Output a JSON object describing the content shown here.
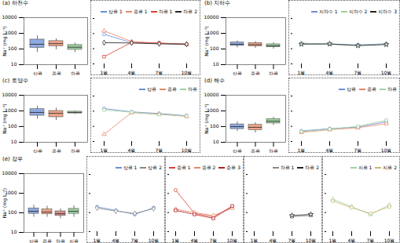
{
  "chart_data": [
    {
      "type": "box",
      "title": "(a) 하천수",
      "y_label": "Na⁺ (mg L⁻¹)",
      "log": "y",
      "ylim": [
        10,
        10000
      ],
      "yticks": [
        10,
        100,
        1000,
        10000
      ],
      "categories": [
        "상류",
        "중류",
        "하류"
      ],
      "colors": [
        "#8fa9e0",
        "#eea58a",
        "#9fd09f"
      ],
      "boxes": [
        {
          "min": 60,
          "q1": 120,
          "median": 200,
          "q3": 400,
          "max": 700
        },
        {
          "min": 90,
          "q1": 150,
          "median": 220,
          "q3": 320,
          "max": 450
        },
        {
          "min": 60,
          "q1": 90,
          "median": 130,
          "q3": 180,
          "max": 240
        }
      ]
    },
    {
      "type": "line",
      "log": "y",
      "ylim": [
        10,
        10000
      ],
      "yticks": [
        10,
        100,
        1000,
        10000
      ],
      "tick_labels": "x",
      "legend": "top",
      "categories": [
        "1월",
        "4월",
        "7월",
        "10월"
      ],
      "series": [
        {
          "name": "상류 1",
          "color": "#6b8fd6",
          "marker": "circle",
          "values": [
            900,
            250,
            220,
            200
          ]
        },
        {
          "name": "중류 1",
          "color": "#e8866a",
          "marker": "triangle",
          "values": [
            1500,
            300,
            230,
            210
          ]
        },
        {
          "name": "하류 1",
          "color": "#d9413a",
          "marker": "square",
          "values": [
            30,
            260,
            240,
            190
          ]
        },
        {
          "name": "하류 2",
          "color": "#222222",
          "marker": "diamond",
          "values": [
            250,
            240,
            210,
            200
          ]
        }
      ]
    },
    {
      "type": "box",
      "title": "(b) 지하수",
      "y_label": "Na⁺ (mg L⁻¹)",
      "log": "y",
      "ylim": [
        10,
        10000
      ],
      "yticks": [
        10,
        100,
        1000,
        10000
      ],
      "categories": [
        "상류",
        "중류",
        "하류"
      ],
      "colors": [
        "#8fa9e0",
        "#eea58a",
        "#9fd09f"
      ],
      "boxes": [
        {
          "min": 120,
          "q1": 160,
          "median": 200,
          "q3": 260,
          "max": 330
        },
        {
          "min": 110,
          "q1": 150,
          "median": 190,
          "q3": 240,
          "max": 300
        },
        {
          "min": 100,
          "q1": 130,
          "median": 160,
          "q3": 200,
          "max": 250
        }
      ]
    },
    {
      "type": "line",
      "log": "y",
      "ylim": [
        10,
        10000
      ],
      "yticks": [
        10,
        100,
        1000,
        10000
      ],
      "tick_labels": "x",
      "legend": "top",
      "categories": [
        "1월",
        "4월",
        "7월",
        "10월"
      ],
      "series": [
        {
          "name": "지하수 1",
          "color": "#6b8fd6",
          "marker": "circle",
          "values": [
            220,
            200,
            180,
            210
          ]
        },
        {
          "name": "지하수 2",
          "color": "#9fd09f",
          "marker": "square",
          "values": [
            240,
            190,
            170,
            200
          ]
        },
        {
          "name": "지하수 3",
          "color": "#222222",
          "marker": "star",
          "values": [
            200,
            210,
            160,
            190
          ]
        }
      ]
    },
    {
      "type": "box",
      "title": "(c) 토양수",
      "y_label": "Na⁺ (mg L⁻¹)",
      "log": "y",
      "ylim": [
        10,
        10000
      ],
      "yticks": [
        10,
        100,
        1000,
        10000
      ],
      "categories": [
        "상류",
        "중류",
        "하류"
      ],
      "colors": [
        "#8fa9e0",
        "#eea58a",
        "#9fd09f"
      ],
      "boxes": [
        {
          "min": 300,
          "q1": 500,
          "median": 800,
          "q3": 1300,
          "max": 2000
        },
        {
          "min": 250,
          "q1": 400,
          "median": 700,
          "q3": 1000,
          "max": 1500
        },
        {
          "min": 600,
          "q1": 700,
          "median": 800,
          "q3": 900,
          "max": 1000
        }
      ]
    },
    {
      "type": "line",
      "log": "y",
      "ylim": [
        10,
        10000
      ],
      "yticks": [
        10,
        100,
        1000,
        10000
      ],
      "tick_labels": "x",
      "legend": "top",
      "categories": [
        "1월",
        "4월",
        "7월",
        "10월"
      ],
      "series": [
        {
          "name": "상류",
          "color": "#6b8fd6",
          "marker": "circle",
          "values": [
            1500,
            900,
            700,
            500
          ]
        },
        {
          "name": "중류",
          "color": "#e8866a",
          "marker": "triangle",
          "values": [
            30,
            800,
            650,
            450
          ]
        },
        {
          "name": "하류",
          "color": "#9fd09f",
          "marker": "square",
          "values": [
            1200,
            850,
            600,
            480
          ]
        }
      ]
    },
    {
      "type": "box",
      "title": "(d) 해수",
      "y_label": "Na⁺ (mg L⁻¹)",
      "log": "y",
      "ylim": [
        10,
        10000
      ],
      "yticks": [
        10,
        100,
        1000,
        10000
      ],
      "categories": [
        "상류",
        "중류",
        "하류"
      ],
      "colors": [
        "#8fa9e0",
        "#eea58a",
        "#9fd09f"
      ],
      "boxes": [
        {
          "min": 50,
          "q1": 70,
          "median": 100,
          "q3": 140,
          "max": 200
        },
        {
          "min": 40,
          "q1": 60,
          "median": 90,
          "q3": 130,
          "max": 180
        },
        {
          "min": 120,
          "q1": 160,
          "median": 220,
          "q3": 300,
          "max": 400
        }
      ]
    },
    {
      "type": "line",
      "log": "y",
      "ylim": [
        10,
        10000
      ],
      "yticks": [
        10,
        100,
        1000,
        10000
      ],
      "tick_labels": "x",
      "legend": "top",
      "categories": [
        "1월",
        "4월",
        "7월",
        "10월"
      ],
      "series": [
        {
          "name": "상류",
          "color": "#6b8fd6",
          "marker": "circle",
          "values": [
            50,
            70,
            90,
            200
          ]
        },
        {
          "name": "중류",
          "color": "#e8866a",
          "marker": "triangle",
          "values": [
            40,
            60,
            80,
            150
          ]
        },
        {
          "name": "하류",
          "color": "#9fd09f",
          "marker": "square",
          "values": [
            45,
            65,
            100,
            250
          ]
        }
      ]
    },
    {
      "type": "box",
      "title": "(e) 강우",
      "y_label": "Na⁺ (mg L⁻¹)",
      "log": "y",
      "ylim": [
        10,
        10000
      ],
      "yticks": [
        10,
        100,
        1000,
        10000
      ],
      "categories": [
        "상류",
        "중류",
        "하류",
        "지류"
      ],
      "colors": [
        "#8fa9e0",
        "#eea58a",
        "#d98f8f",
        "#9fd09f"
      ],
      "boxes": [
        {
          "min": 60,
          "q1": 90,
          "median": 120,
          "q3": 170,
          "max": 250
        },
        {
          "min": 60,
          "q1": 85,
          "median": 110,
          "q3": 150,
          "max": 220
        },
        {
          "min": 50,
          "q1": 70,
          "median": 90,
          "q3": 120,
          "max": 160
        },
        {
          "min": 60,
          "q1": 90,
          "median": 120,
          "q3": 160,
          "max": 230
        }
      ]
    },
    {
      "type": "line",
      "log": "y",
      "ylim": [
        10,
        10000
      ],
      "yticks": [
        10,
        100,
        1000,
        10000
      ],
      "tick_labels": "x",
      "legend": "top",
      "categories": [
        "1월",
        "4월",
        "7월",
        "10월"
      ],
      "series": [
        {
          "name": "상류 1",
          "color": "#6b8fd6",
          "marker": "circle",
          "values": [
            200,
            130,
            80,
            180
          ]
        },
        {
          "name": "상류 2",
          "color": "#888888",
          "marker": "diamond",
          "values": [
            170,
            120,
            90,
            160
          ]
        }
      ]
    },
    {
      "type": "line",
      "log": "y",
      "ylim": [
        10,
        10000
      ],
      "yticks": [
        10,
        100,
        1000,
        10000
      ],
      "tick_labels": "x",
      "legend": "top",
      "categories": [
        "1월",
        "4월",
        "7월",
        "10월"
      ],
      "series": [
        {
          "name": "중류 1",
          "color": "#d9413a",
          "marker": "circle",
          "values": [
            1500,
            90,
            60,
            200
          ]
        },
        {
          "name": "중류 2",
          "color": "#e8866a",
          "marker": "triangle",
          "values": [
            150,
            100,
            70,
            170
          ]
        },
        {
          "name": "중류 3",
          "color": "#b02020",
          "marker": "square",
          "values": [
            130,
            80,
            50,
            220
          ]
        }
      ]
    },
    {
      "type": "line",
      "log": "y",
      "ylim": [
        10,
        10000
      ],
      "yticks": [
        10,
        100,
        1000,
        10000
      ],
      "tick_labels": "x",
      "legend": "top",
      "categories": [
        "1월",
        "4월",
        "7월",
        "10월"
      ],
      "series": [
        {
          "name": "하류 1",
          "color": "#888888",
          "marker": "circle",
          "values": [
            null,
            null,
            60,
            70
          ]
        },
        {
          "name": "하류 2",
          "color": "#222222",
          "marker": "star",
          "values": [
            null,
            null,
            70,
            80
          ]
        }
      ]
    },
    {
      "type": "line",
      "log": "y",
      "ylim": [
        10,
        10000
      ],
      "yticks": [
        10,
        100,
        1000,
        10000
      ],
      "tick_labels": "x",
      "legend": "top",
      "categories": [
        "1월",
        "4월",
        "7월",
        "10월"
      ],
      "series": [
        {
          "name": "지류 1",
          "color": "#9fd09f",
          "marker": "triangle",
          "values": [
            500,
            200,
            80,
            250
          ]
        },
        {
          "name": "지류 2",
          "color": "#c9b870",
          "marker": "circle",
          "values": [
            400,
            180,
            90,
            200
          ]
        }
      ]
    }
  ]
}
